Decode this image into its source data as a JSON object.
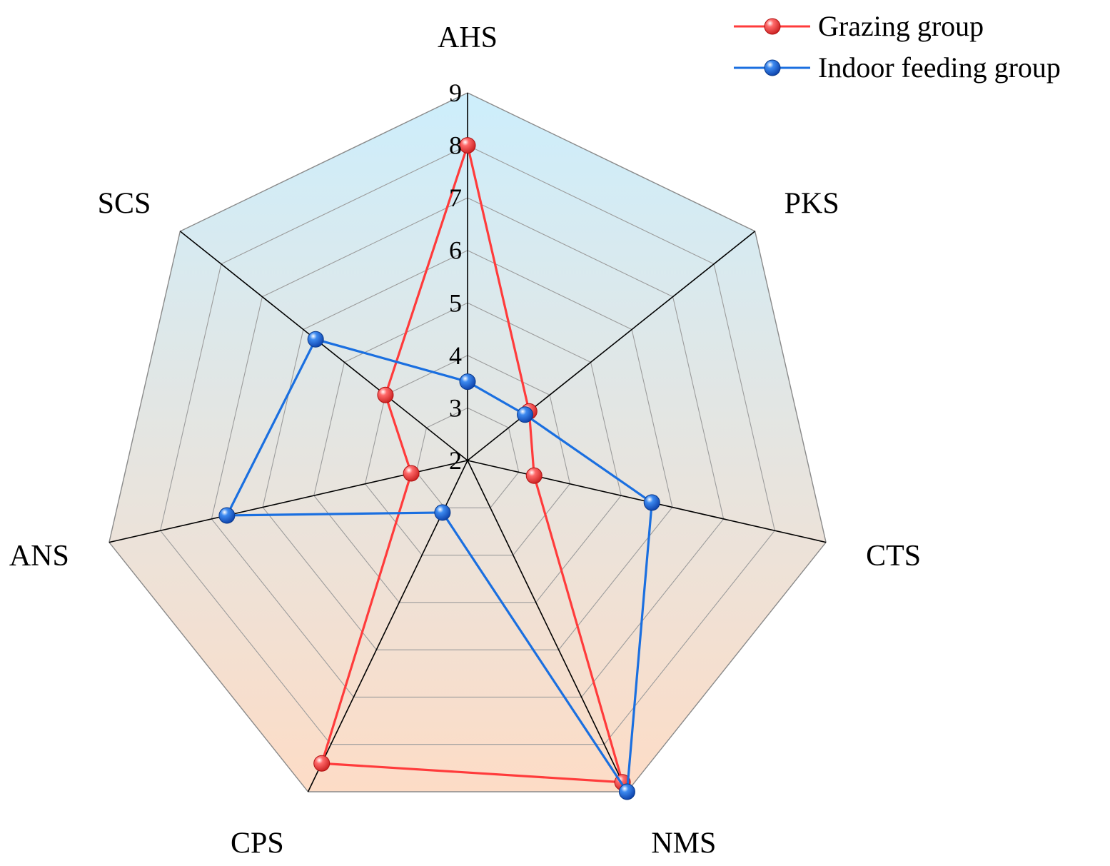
{
  "chart_data": {
    "type": "radar",
    "title": "",
    "axes": [
      "AHS",
      "PKS",
      "CTS",
      "NMS",
      "CPS",
      "ANS",
      "SCS"
    ],
    "rlim": [
      2,
      9
    ],
    "ticks": [
      "2",
      "3",
      "4",
      "5",
      "6",
      "7",
      "8",
      "9"
    ],
    "grid": true,
    "legend_position": "top-right",
    "series": [
      {
        "name": "Grazing group",
        "color": "#ff3b3b",
        "values": [
          8.0,
          3.5,
          3.3,
          8.8,
          8.4,
          3.1,
          4.0
        ]
      },
      {
        "name": "Indoor feeding group",
        "color": "#1a6fe0",
        "values": [
          3.5,
          3.4,
          5.6,
          9.0,
          3.1,
          6.7,
          5.7
        ]
      }
    ],
    "background_gradient": [
      "#cdeefc",
      "#fddcc6"
    ]
  }
}
